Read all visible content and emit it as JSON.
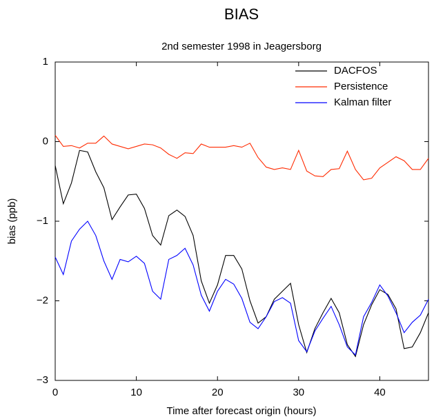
{
  "chart_data": {
    "type": "line",
    "title": "BIAS",
    "subtitle": "2nd semester 1998 in Jeagersborg",
    "x_label": "Time after forecast origin (hours)",
    "y_label": "bias (ppb)",
    "x": [
      0,
      1,
      2,
      3,
      4,
      5,
      6,
      7,
      8,
      9,
      10,
      11,
      12,
      13,
      14,
      15,
      16,
      17,
      18,
      19,
      20,
      21,
      22,
      23,
      24,
      25,
      26,
      27,
      28,
      29,
      30,
      31,
      32,
      33,
      34,
      35,
      36,
      37,
      38,
      39,
      40,
      41,
      42,
      43,
      44,
      45,
      46
    ],
    "series": [
      {
        "name": "DACFOS",
        "color": "#000000",
        "values": [
          -0.3,
          -0.78,
          -0.52,
          -0.11,
          -0.13,
          -0.38,
          -0.58,
          -0.98,
          -0.82,
          -0.67,
          -0.66,
          -0.84,
          -1.18,
          -1.3,
          -0.93,
          -0.86,
          -0.94,
          -1.18,
          -1.75,
          -2.03,
          -1.8,
          -1.43,
          -1.43,
          -1.6,
          -2.0,
          -2.28,
          -2.2,
          -1.98,
          -1.88,
          -1.78,
          -2.3,
          -2.65,
          -2.35,
          -2.15,
          -1.97,
          -2.15,
          -2.55,
          -2.7,
          -2.3,
          -2.05,
          -1.86,
          -1.92,
          -2.1,
          -2.6,
          -2.58,
          -2.4,
          -2.15
        ]
      },
      {
        "name": "Persistence",
        "color": "#ff2a00",
        "values": [
          0.08,
          -0.06,
          -0.05,
          -0.08,
          -0.02,
          -0.02,
          0.07,
          -0.03,
          -0.06,
          -0.09,
          -0.06,
          -0.03,
          -0.04,
          -0.08,
          -0.16,
          -0.21,
          -0.14,
          -0.15,
          -0.03,
          -0.07,
          -0.07,
          -0.07,
          -0.05,
          -0.07,
          -0.02,
          -0.2,
          -0.32,
          -0.35,
          -0.33,
          -0.35,
          -0.11,
          -0.37,
          -0.43,
          -0.44,
          -0.35,
          -0.34,
          -0.12,
          -0.35,
          -0.48,
          -0.46,
          -0.33,
          -0.26,
          -0.19,
          -0.24,
          -0.35,
          -0.35,
          -0.21
        ]
      },
      {
        "name": "Kalman filter",
        "color": "#0000ff",
        "values": [
          -1.45,
          -1.67,
          -1.25,
          -1.1,
          -1.0,
          -1.18,
          -1.5,
          -1.73,
          -1.48,
          -1.51,
          -1.44,
          -1.53,
          -1.88,
          -1.98,
          -1.48,
          -1.43,
          -1.34,
          -1.55,
          -1.93,
          -2.13,
          -1.88,
          -1.73,
          -1.79,
          -1.97,
          -2.27,
          -2.35,
          -2.2,
          -2.01,
          -1.96,
          -2.03,
          -2.5,
          -2.64,
          -2.38,
          -2.22,
          -2.07,
          -2.3,
          -2.58,
          -2.68,
          -2.2,
          -2.02,
          -1.8,
          -1.94,
          -2.15,
          -2.4,
          -2.27,
          -2.18,
          -1.98
        ]
      }
    ],
    "xlim": [
      0,
      46
    ],
    "xticks": [
      0,
      10,
      20,
      30,
      40
    ],
    "ylim": [
      -3,
      1
    ],
    "yticks": [
      {
        "value": -3,
        "label": "−3"
      },
      {
        "value": -2,
        "label": "−2"
      },
      {
        "value": -1,
        "label": "−1"
      },
      0,
      1
    ],
    "grid": false,
    "legend": "upper right"
  }
}
